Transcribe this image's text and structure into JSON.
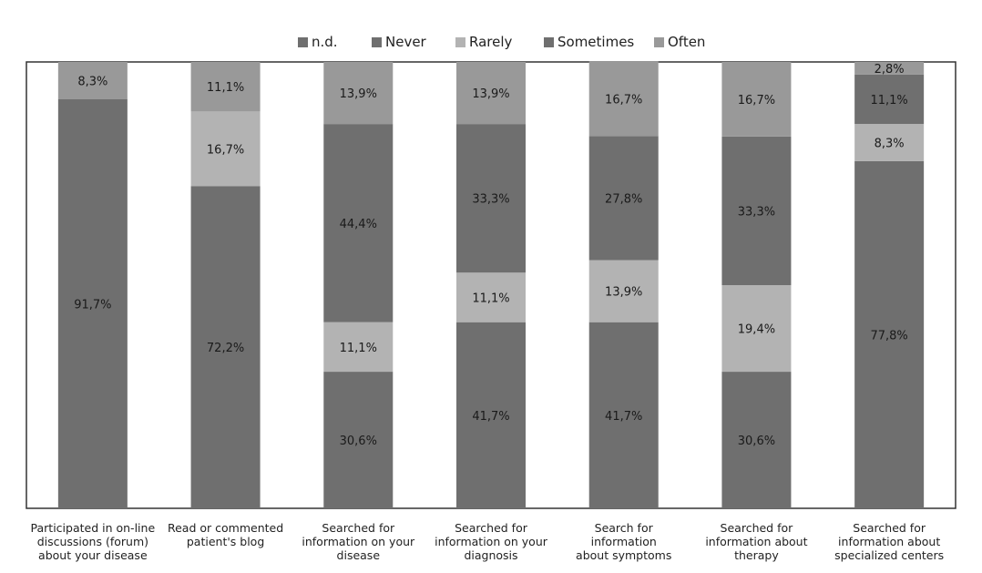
{
  "chart_data": {
    "type": "bar",
    "stacked": true,
    "percent_stacked": true,
    "title": "",
    "xlabel": "",
    "ylabel": "",
    "ylim": [
      0,
      100
    ],
    "grid": false,
    "legend_position": "top",
    "categories": [
      [
        "Participated in on-line",
        "discussions (forum)",
        "about your disease"
      ],
      [
        "Read or commented",
        "patient's blog"
      ],
      [
        "Searched for",
        "information on your",
        "disease"
      ],
      [
        "Searched for",
        "information on your",
        "diagnosis"
      ],
      [
        "Search for information",
        "about  symptoms"
      ],
      [
        "Searched for",
        "information about",
        "therapy"
      ],
      [
        "Searched for",
        "information about",
        "specialized centers"
      ]
    ],
    "series": [
      {
        "name": "n.d.",
        "color": "#6f6f6f",
        "values": [
          0,
          0,
          0,
          0,
          0,
          0,
          0
        ],
        "labels": [
          "",
          "",
          "",
          "",
          "",
          "",
          ""
        ]
      },
      {
        "name": "Never",
        "color": "#6f6f6f",
        "values": [
          91.7,
          72.2,
          30.6,
          41.7,
          41.7,
          30.6,
          77.8
        ],
        "labels": [
          "91,7%",
          "72,2%",
          "30,6%",
          "41,7%",
          "41,7%",
          "30,6%",
          "77,8%"
        ]
      },
      {
        "name": "Rarely",
        "color": "#b3b3b3",
        "values": [
          0,
          16.7,
          11.1,
          11.1,
          13.9,
          19.4,
          8.3
        ],
        "labels": [
          "",
          "16,7%",
          "11,1%",
          "11,1%",
          "13,9%",
          "19,4%",
          "8,3%"
        ]
      },
      {
        "name": "Sometimes",
        "color": "#6f6f6f",
        "values": [
          0,
          0,
          44.4,
          33.3,
          27.8,
          33.3,
          11.1
        ],
        "labels": [
          "",
          "",
          "44,4%",
          "33,3%",
          "27,8%",
          "33,3%",
          "11,1%"
        ]
      },
      {
        "name": "Often",
        "color": "#999999",
        "values": [
          8.3,
          11.1,
          13.9,
          13.9,
          16.7,
          16.7,
          2.8
        ],
        "labels": [
          "8,3%",
          "11,1%",
          "13,9%",
          "13,9%",
          "16,7%",
          "16,7%",
          "2,8%"
        ]
      }
    ]
  }
}
